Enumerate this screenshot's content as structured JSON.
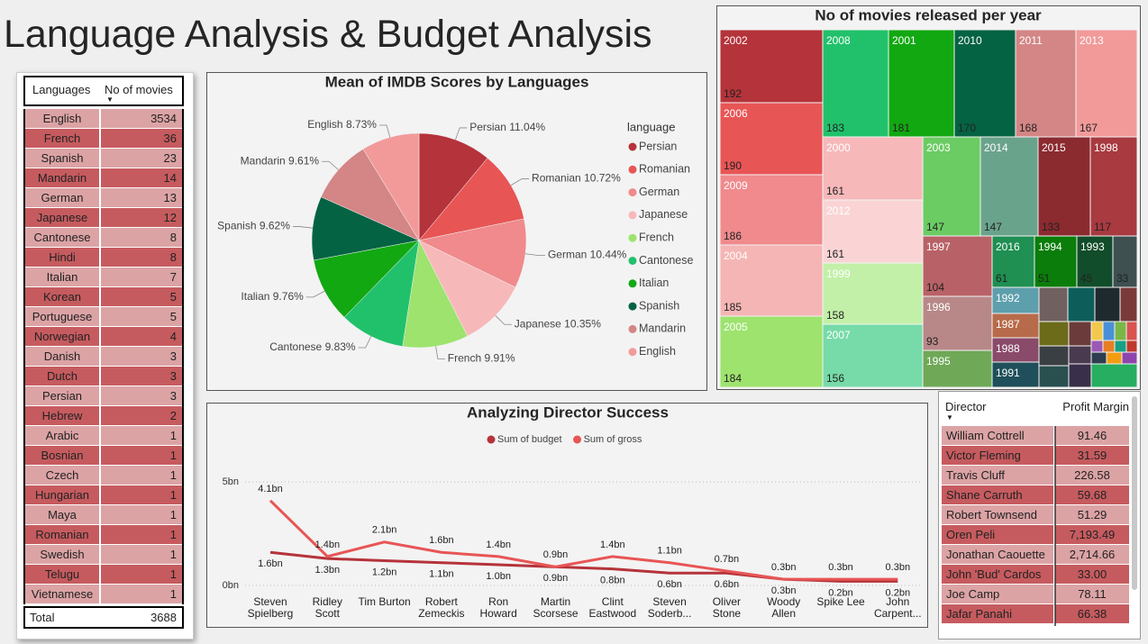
{
  "title": "Language Analysis & Budget Analysis",
  "languages_table": {
    "headers": [
      "Languages",
      "No of movies"
    ],
    "rows": [
      [
        "English",
        3534
      ],
      [
        "French",
        36
      ],
      [
        "Spanish",
        23
      ],
      [
        "Mandarin",
        14
      ],
      [
        "German",
        13
      ],
      [
        "Japanese",
        12
      ],
      [
        "Cantonese",
        8
      ],
      [
        "Hindi",
        8
      ],
      [
        "Italian",
        7
      ],
      [
        "Korean",
        5
      ],
      [
        "Portuguese",
        5
      ],
      [
        "Norwegian",
        4
      ],
      [
        "Danish",
        3
      ],
      [
        "Dutch",
        3
      ],
      [
        "Persian",
        3
      ],
      [
        "Hebrew",
        2
      ],
      [
        "Arabic",
        1
      ],
      [
        "Bosnian",
        1
      ],
      [
        "Czech",
        1
      ],
      [
        "Hungarian",
        1
      ],
      [
        "Maya",
        1
      ],
      [
        "Romanian",
        1
      ],
      [
        "Swedish",
        1
      ],
      [
        "Telugu",
        1
      ],
      [
        "Vietnamese",
        1
      ]
    ],
    "total": [
      "Total",
      3688
    ]
  },
  "chart_data": [
    {
      "type": "pie",
      "title": "Mean of IMDB Scores by Languages",
      "legend_title": "language",
      "legend": "right",
      "categories": [
        "Persian",
        "Romanian",
        "German",
        "Japanese",
        "French",
        "Cantonese",
        "Italian",
        "Spanish",
        "Mandarin",
        "English"
      ],
      "values": [
        11.04,
        10.72,
        10.44,
        10.35,
        9.91,
        9.83,
        9.76,
        9.62,
        9.61,
        8.73
      ],
      "value_labels": [
        "Persian 11.04%",
        "Romanian 10.72%",
        "German 10.44%",
        "Japanese 10.35%",
        "French 9.91%",
        "Cantonese 9.83%",
        "Italian 9.76%",
        "Spanish 9.62%",
        "Mandarin 9.61%",
        "English 8.73%"
      ],
      "colors": [
        "#b5333a",
        "#e85555",
        "#f08a8c",
        "#f7b8ba",
        "#9de36e",
        "#21c16b",
        "#12a812",
        "#046343",
        "#d48585",
        "#f29a9a"
      ]
    },
    {
      "type": "treemap",
      "title": "No of movies released per year",
      "categories": [
        "2002",
        "2006",
        "2009",
        "2004",
        "2005",
        "2008",
        "2001",
        "2010",
        "2011",
        "2013",
        "2000",
        "2012",
        "1999",
        "2007",
        "2003",
        "2014",
        "2015",
        "1998",
        "1997",
        "2016",
        "1994",
        "1993",
        null,
        "1996",
        "1995",
        "1992",
        "1987",
        "1988",
        "1991",
        null,
        null,
        null,
        null,
        null,
        null,
        null,
        null,
        null,
        null,
        null,
        null,
        null,
        null,
        null,
        null,
        null,
        null,
        null,
        null,
        null,
        null
      ],
      "values": [
        192,
        190,
        186,
        185,
        184,
        183,
        181,
        170,
        168,
        167,
        161,
        161,
        158,
        156,
        147,
        147,
        133,
        117,
        104,
        61,
        51,
        45,
        33,
        93,
        64,
        33,
        32,
        32,
        33,
        28,
        26,
        24,
        16,
        20,
        15,
        17,
        18,
        11,
        15,
        6,
        6,
        6,
        6,
        4,
        4,
        4,
        4,
        3,
        3,
        3,
        3
      ],
      "value_labels": [
        "192",
        "190",
        "186",
        "185",
        "184",
        "183",
        "181",
        "170",
        "168",
        "167",
        "161",
        "161",
        "158",
        "156",
        "147",
        "147",
        "133",
        "117",
        "104",
        "61",
        "51",
        "45",
        "33",
        "93",
        null,
        null,
        null,
        null,
        null,
        null,
        null,
        null,
        null,
        null,
        null,
        null,
        null,
        null,
        null,
        null,
        null,
        null,
        null,
        null,
        null,
        null,
        null,
        null,
        null,
        null,
        null
      ],
      "colors": [
        "#b5333a",
        "#e85555",
        "#f08a8c",
        "#f5b5b5",
        "#9de36e",
        "#21c16b",
        "#12a812",
        "#046343",
        "#d48585",
        "#f29a9a",
        "#f7b8ba",
        "#fad4d4",
        "#c3f0a8",
        "#76dba8",
        "#6bcc63",
        "#6aa38c",
        "#8b2a2f",
        "#a83a40",
        "#b86267",
        "#1f8f52",
        "#0a7d0a",
        "#114d2a",
        "#3e5050",
        "#b88888",
        "#6fa857",
        "#5e9fad",
        "#b86b4a",
        "#8a4a6a",
        "#1f4f5a",
        "#706060",
        "#0d5e5a",
        "#1f2a2f",
        "#7a3a3a",
        "#6b6b1a",
        "#6b3a3a",
        "#3a3f44",
        "#2a4f4f",
        "#4a3a4f",
        "#3a2f4a",
        "#f2c94c",
        "#4a90d9",
        "#7ab648",
        "#d9534f",
        "#9b59b6",
        "#e67e22",
        "#16a085",
        "#c0392b",
        "#2c3e50",
        "#f39c12",
        "#8e44ad",
        "#27ae60"
      ]
    },
    {
      "type": "line",
      "title": "Analyzing Director Success",
      "legend": "top",
      "grid": true,
      "categories": [
        "Steven Spielberg",
        "Ridley Scott",
        "Tim Burton",
        "Robert Zemeckis",
        "Ron Howard",
        "Martin Scorsese",
        "Clint Eastwood",
        "Steven Soderb...",
        "Oliver Stone",
        "Woody Allen",
        "Spike Lee",
        "John Carpent..."
      ],
      "ylim": [
        0,
        5.4
      ],
      "yticks": [
        {
          "value": 0,
          "label": "0bn"
        },
        {
          "value": 5,
          "label": "5bn"
        }
      ],
      "series": [
        {
          "name": "Sum of budget",
          "color": "#b5333a",
          "values": [
            1.6,
            1.3,
            1.2,
            1.1,
            1.0,
            0.9,
            0.8,
            0.6,
            0.6,
            0.3,
            0.2,
            0.2
          ],
          "value_labels": [
            "1.6bn",
            "1.3bn",
            "1.2bn",
            "1.1bn",
            "1.0bn",
            "0.9bn",
            "0.8bn",
            "0.6bn",
            "0.6bn",
            "0.3bn",
            "0.2bn",
            "0.2bn"
          ]
        },
        {
          "name": "Sum of gross",
          "color": "#e85555",
          "values": [
            4.1,
            1.4,
            2.1,
            1.6,
            1.4,
            0.9,
            1.4,
            1.1,
            0.7,
            0.3,
            0.3,
            0.3
          ],
          "value_labels": [
            "4.1bn",
            "1.4bn",
            "2.1bn",
            "1.6bn",
            "1.4bn",
            "0.9bn",
            "1.4bn",
            "1.1bn",
            "0.7bn",
            "0.3bn",
            "0.3bn",
            "0.3bn"
          ]
        }
      ]
    }
  ],
  "director_table": {
    "headers": [
      "Director",
      "Profit Margin"
    ],
    "rows": [
      [
        "William Cottrell",
        "91.46"
      ],
      [
        "Victor Fleming",
        "31.59"
      ],
      [
        "Travis Cluff",
        "226.58"
      ],
      [
        "Shane Carruth",
        "59.68"
      ],
      [
        "Robert Townsend",
        "51.29"
      ],
      [
        "Oren Peli",
        "7,193.49"
      ],
      [
        "Jonathan Caouette",
        "2,714.66"
      ],
      [
        "John 'Bud' Cardos",
        "33.00"
      ],
      [
        "Joe Camp",
        "78.11"
      ],
      [
        "Jafar Panahi",
        "66.38"
      ]
    ]
  }
}
